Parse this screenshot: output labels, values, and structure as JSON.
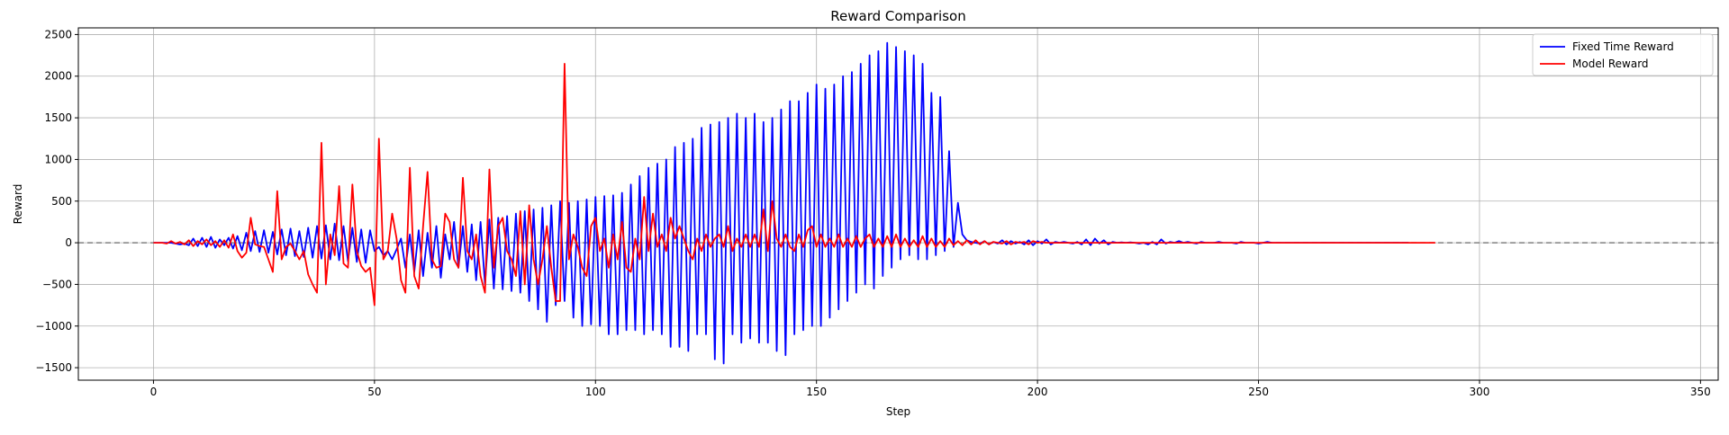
{
  "chart_data": {
    "type": "line",
    "title": "Reward Comparison",
    "xlabel": "Step",
    "ylabel": "Reward",
    "xlim": [
      -17,
      354
    ],
    "ylim": [
      -1650,
      2580
    ],
    "xticks": [
      0,
      50,
      100,
      150,
      200,
      250,
      300,
      350
    ],
    "yticks": [
      -1500,
      -1000,
      -500,
      0,
      500,
      1000,
      1500,
      2000,
      2500
    ],
    "xtick_labels": [
      "0",
      "50",
      "100",
      "150",
      "200",
      "250",
      "300",
      "350"
    ],
    "ytick_labels": [
      "−1500",
      "−1000",
      "−500",
      "0",
      "500",
      "1000",
      "1500",
      "2000",
      "2500"
    ],
    "grid": true,
    "reference_line": {
      "y": 0,
      "style": "dashed",
      "color": "#808080"
    },
    "legend": {
      "placement": "top-right"
    },
    "series": [
      {
        "name": "Fixed Time Reward",
        "color": "#0000ff",
        "values": [
          0,
          0,
          0,
          0,
          0,
          -10,
          -20,
          -10,
          -30,
          50,
          -40,
          60,
          -50,
          70,
          -60,
          40,
          -30,
          60,
          -70,
          80,
          -90,
          120,
          -100,
          140,
          -110,
          150,
          -120,
          130,
          -140,
          160,
          -150,
          170,
          -160,
          140,
          -170,
          180,
          -180,
          200,
          -190,
          210,
          -200,
          230,
          -210,
          200,
          -220,
          180,
          -230,
          160,
          -240,
          150,
          -100,
          -50,
          -150,
          -100,
          -200,
          -80,
          50,
          -300,
          100,
          -350,
          150,
          -400,
          120,
          -300,
          200,
          -420,
          100,
          -200,
          250,
          -300,
          200,
          -350,
          220,
          -450,
          250,
          -500,
          280,
          -550,
          300,
          -560,
          320,
          -580,
          350,
          -600,
          380,
          -700,
          400,
          -800,
          420,
          -950,
          450,
          -750,
          500,
          -700,
          480,
          -900,
          500,
          -1000,
          520,
          -980,
          550,
          -1000,
          560,
          -1100,
          570,
          -1100,
          600,
          -1050,
          700,
          -1050,
          800,
          -1100,
          900,
          -1050,
          950,
          -1100,
          1000,
          -1250,
          1150,
          -1250,
          1200,
          -1300,
          1250,
          -1100,
          1380,
          -1100,
          1420,
          -1400,
          1450,
          -1450,
          1500,
          -1100,
          1550,
          -1200,
          1500,
          -1150,
          1550,
          -1200,
          1450,
          -1200,
          1500,
          -1300,
          1600,
          -1350,
          1700,
          -1100,
          1700,
          -1050,
          1800,
          -1000,
          1900,
          -1000,
          1850,
          -900,
          1900,
          -800,
          2000,
          -700,
          2050,
          -600,
          2150,
          -500,
          2250,
          -550,
          2300,
          -400,
          2400,
          -300,
          2350,
          -200,
          2300,
          -150,
          2250,
          -200,
          2150,
          -200,
          1800,
          -150,
          1750,
          -100,
          1100,
          -50,
          480,
          100,
          30,
          10,
          0,
          -10,
          20,
          -20,
          10,
          -10,
          30,
          -20,
          20,
          -10,
          10,
          -20,
          30,
          -30,
          20,
          -10,
          40,
          -20,
          10,
          0,
          10,
          0,
          -10,
          10,
          -20,
          40,
          -30,
          50,
          -10,
          30,
          -20,
          10,
          0,
          5,
          0,
          5,
          0,
          -10,
          0,
          -20,
          10,
          -20,
          40,
          -10,
          10,
          0,
          20,
          0,
          10,
          0,
          -10,
          10,
          0,
          0,
          0,
          10,
          0,
          0,
          0,
          -10,
          10,
          0,
          0,
          0,
          -10,
          0,
          10,
          0,
          0,
          0,
          0,
          0,
          0,
          0,
          0,
          0,
          0,
          0,
          0,
          0,
          0,
          0,
          0,
          0,
          0,
          0,
          0,
          0,
          0,
          0,
          0,
          0,
          0,
          0,
          0,
          0,
          0,
          0,
          0
        ]
      },
      {
        "name": "Model Reward",
        "color": "#ff0000",
        "values": [
          0,
          0,
          0,
          -10,
          20,
          -10,
          10,
          -20,
          30,
          -40,
          20,
          -20,
          40,
          -30,
          20,
          -50,
          30,
          -60,
          100,
          -100,
          -180,
          -120,
          300,
          -20,
          -40,
          -50,
          -200,
          -350,
          620,
          -200,
          -50,
          -10,
          -100,
          -200,
          -100,
          -380,
          -500,
          -600,
          1200,
          -500,
          100,
          -150,
          680,
          -250,
          -300,
          700,
          -100,
          -280,
          -350,
          -300,
          -750,
          1250,
          -200,
          -100,
          350,
          50,
          -450,
          -600,
          900,
          -400,
          -550,
          200,
          850,
          -200,
          -300,
          -280,
          350,
          250,
          -200,
          -300,
          780,
          -100,
          -200,
          100,
          -400,
          -600,
          880,
          -300,
          200,
          300,
          -100,
          -200,
          -400,
          380,
          -500,
          450,
          -200,
          -500,
          -200,
          200,
          -300,
          -700,
          -700,
          2150,
          -200,
          100,
          -50,
          -300,
          -400,
          200,
          300,
          -100,
          50,
          -300,
          100,
          -200,
          250,
          -300,
          -350,
          50,
          -200,
          550,
          -100,
          350,
          -50,
          100,
          -100,
          300,
          50,
          200,
          50,
          -100,
          -200,
          50,
          -100,
          100,
          -50,
          50,
          100,
          -50,
          200,
          -100,
          50,
          -50,
          100,
          -50,
          100,
          -50,
          400,
          -100,
          500,
          50,
          -50,
          100,
          -50,
          -100,
          100,
          -50,
          150,
          200,
          -50,
          100,
          -50,
          50,
          -50,
          100,
          -50,
          50,
          -50,
          80,
          -50,
          50,
          100,
          -50,
          50,
          -50,
          80,
          -50,
          100,
          -50,
          50,
          -50,
          30,
          -50,
          80,
          -50,
          50,
          -50,
          20,
          -50,
          50,
          -30,
          20,
          -30,
          30,
          -20,
          30,
          -20,
          20,
          -20,
          10,
          0,
          -10,
          20,
          -20,
          10,
          0,
          10,
          -20,
          20,
          0,
          10,
          0,
          0,
          0,
          0,
          0,
          0,
          0,
          0,
          0,
          0,
          0,
          0,
          0,
          0,
          0,
          0,
          0,
          0,
          0,
          0,
          0,
          0,
          0,
          0,
          0,
          0,
          0,
          0,
          0,
          0,
          0,
          0,
          0,
          0,
          0,
          0,
          0,
          0,
          0,
          0,
          0,
          0,
          0,
          0,
          0,
          0,
          0,
          0,
          0,
          0,
          0,
          0,
          0,
          0,
          0,
          0,
          0,
          0,
          0,
          0,
          0,
          0,
          0,
          0,
          0,
          0,
          0,
          0,
          0,
          0,
          0,
          0,
          0,
          0,
          0,
          0,
          0,
          0,
          0,
          0,
          0,
          0,
          0,
          0,
          0,
          0,
          0,
          0,
          0
        ]
      }
    ]
  }
}
